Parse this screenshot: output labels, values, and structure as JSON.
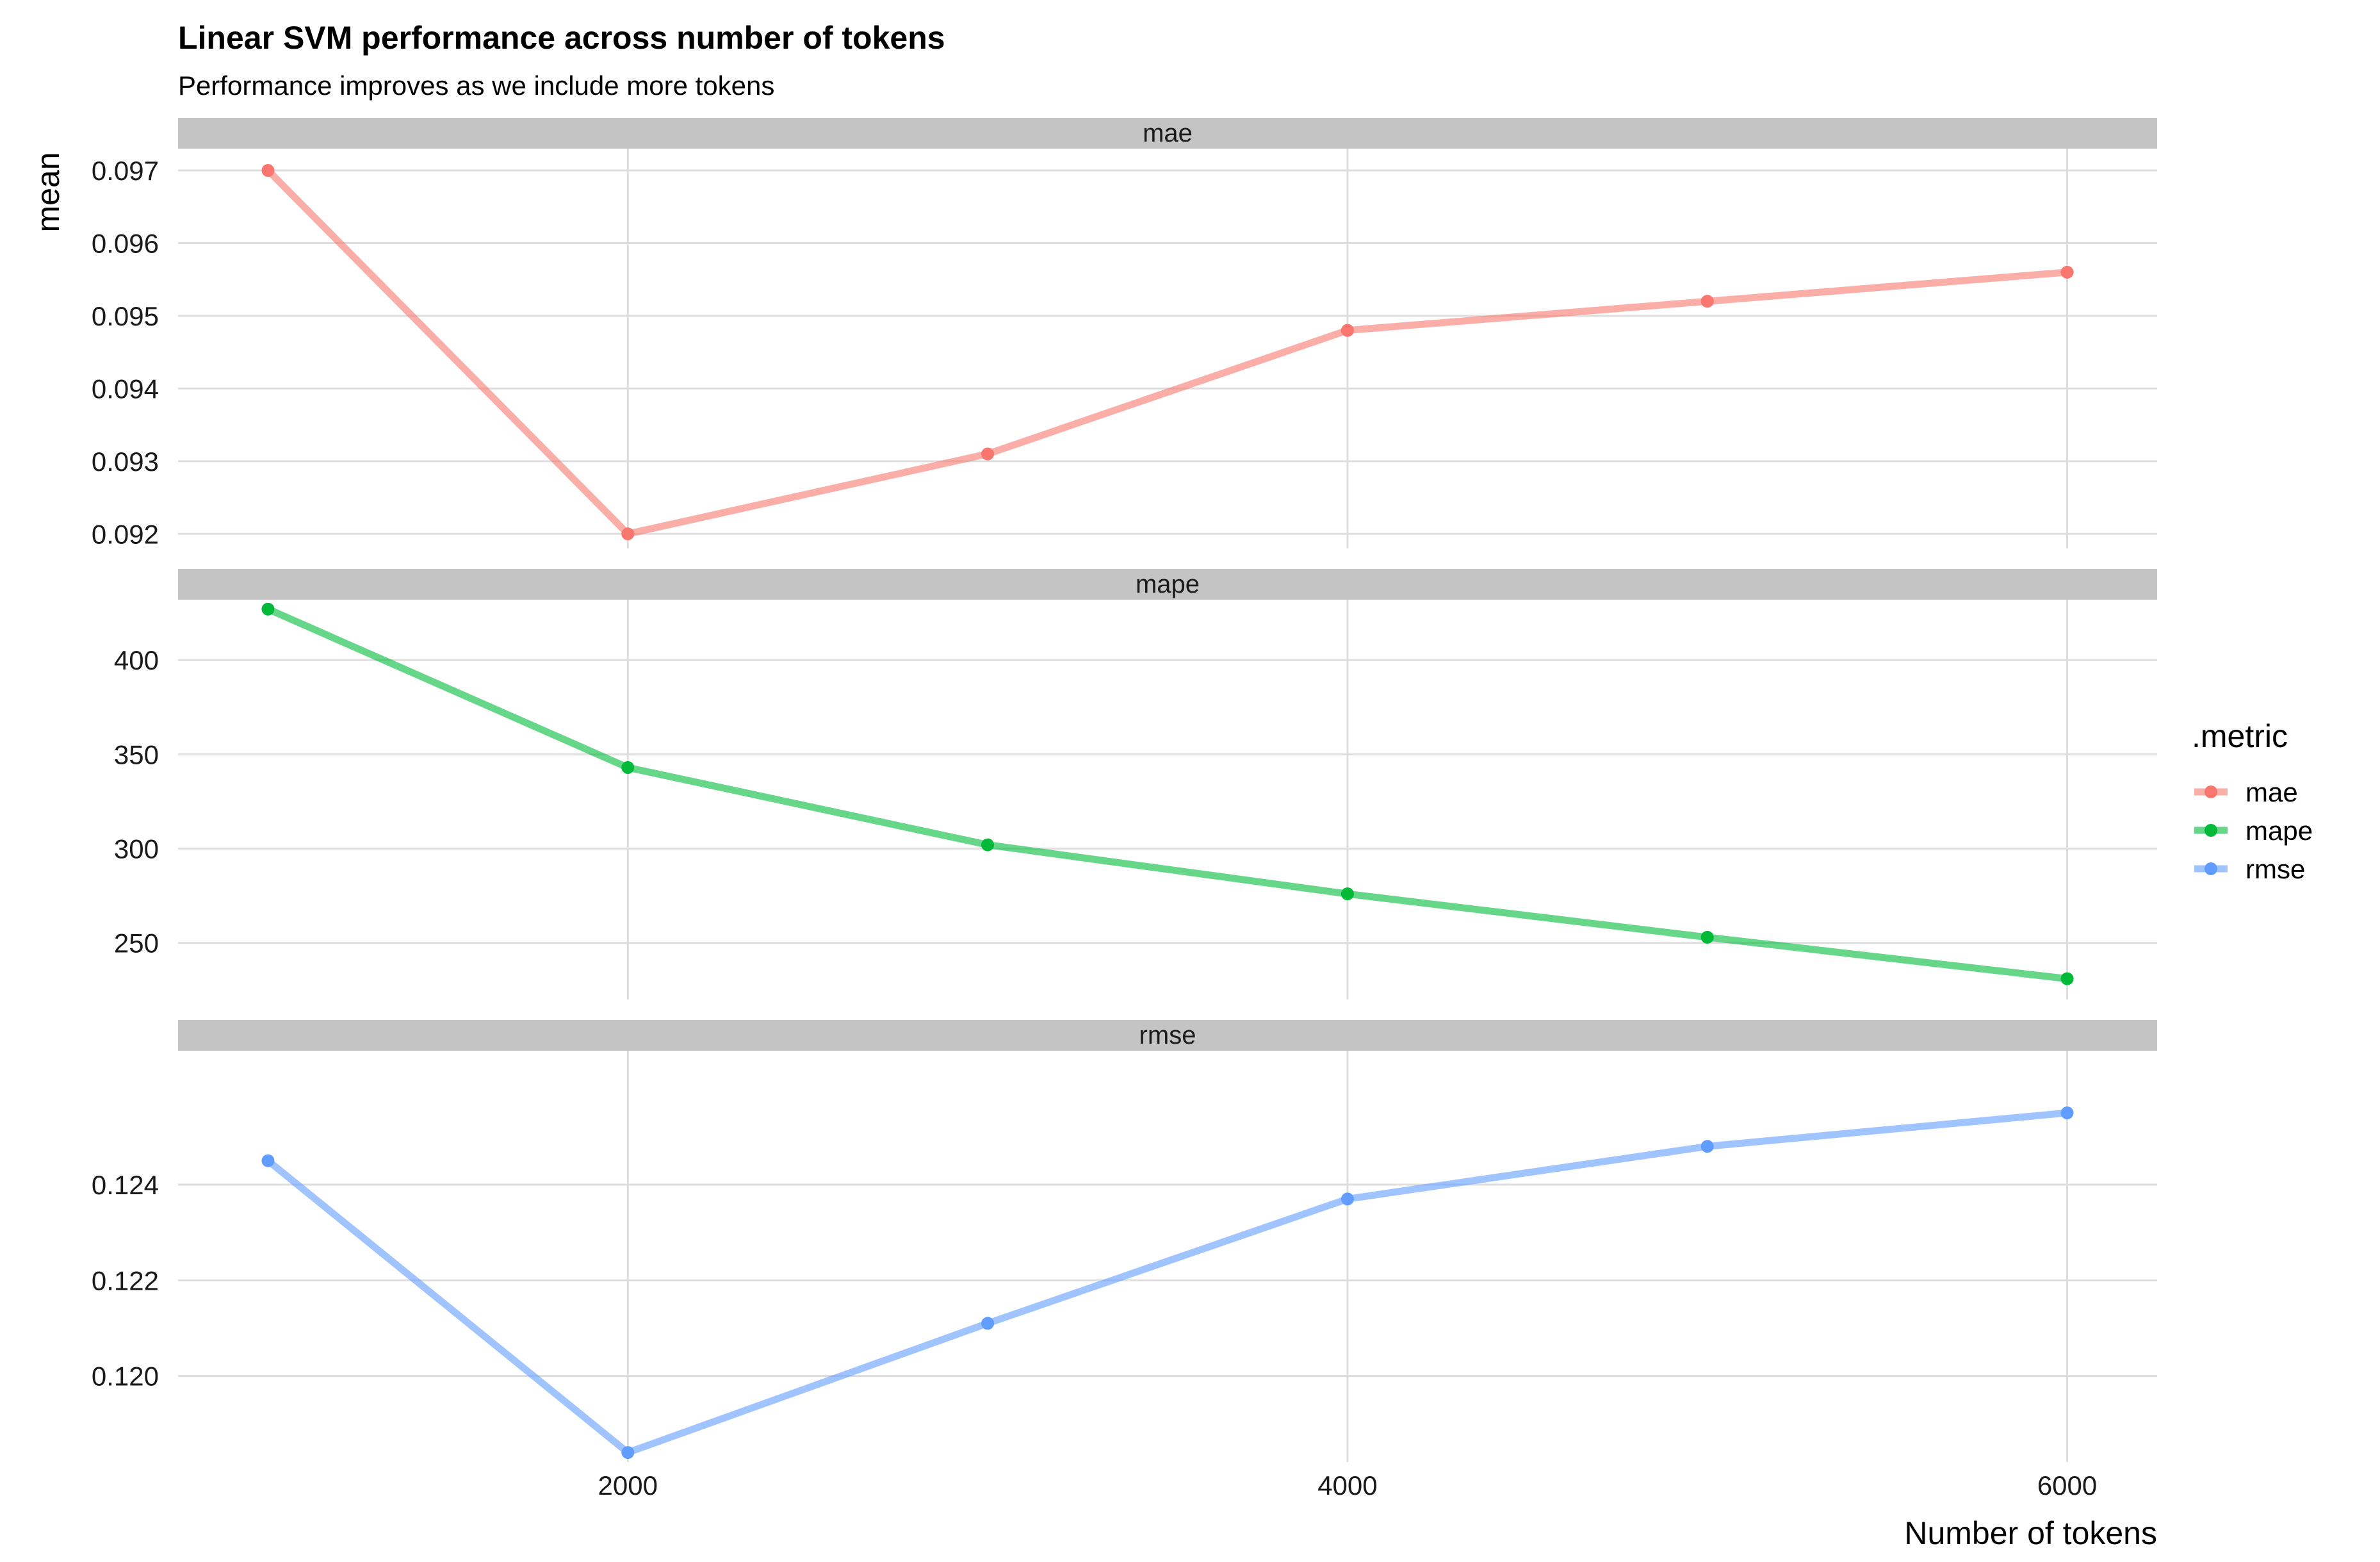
{
  "chart_data": {
    "type": "line",
    "title": "Linear SVM performance across number of tokens",
    "subtitle": "Performance improves as we include more tokens",
    "xlabel": "Number of tokens",
    "ylabel": "mean",
    "legend": {
      "title": ".metric",
      "position": "right"
    },
    "grid": true,
    "x_ticks": [
      2000,
      4000,
      6000
    ],
    "xlim": [
      750,
      6250
    ],
    "x": [
      1000,
      2000,
      3000,
      4000,
      5000,
      6000
    ],
    "panels": [
      {
        "strip": "mae",
        "color": "#F8766D",
        "ylim": [
          0.0918,
          0.0973
        ],
        "y_ticks": [
          0.092,
          0.093,
          0.094,
          0.095,
          0.096,
          0.097
        ],
        "y_tick_labels": [
          "0.092",
          "0.093",
          "0.094",
          "0.095",
          "0.096",
          "0.097"
        ],
        "values": [
          0.097,
          0.092,
          0.0931,
          0.0948,
          0.0952,
          0.0956
        ]
      },
      {
        "strip": "mape",
        "color": "#00BA38",
        "ylim": [
          220,
          432
        ],
        "y_ticks": [
          250,
          300,
          350,
          400
        ],
        "y_tick_labels": [
          "250",
          "300",
          "350",
          "400"
        ],
        "values": [
          427,
          343,
          302,
          276,
          253,
          231
        ]
      },
      {
        "strip": "rmse",
        "color": "#619CFF",
        "ylim": [
          0.1182,
          0.1268
        ],
        "y_ticks": [
          0.12,
          0.122,
          0.124
        ],
        "y_tick_labels": [
          "0.120",
          "0.122",
          "0.124"
        ],
        "values": [
          0.1245,
          0.1184,
          0.1211,
          0.1237,
          0.1248,
          0.1255
        ]
      }
    ],
    "series": [
      {
        "name": "mae",
        "color": "#F8766D"
      },
      {
        "name": "mape",
        "color": "#00BA38"
      },
      {
        "name": "rmse",
        "color": "#619CFF"
      }
    ]
  }
}
